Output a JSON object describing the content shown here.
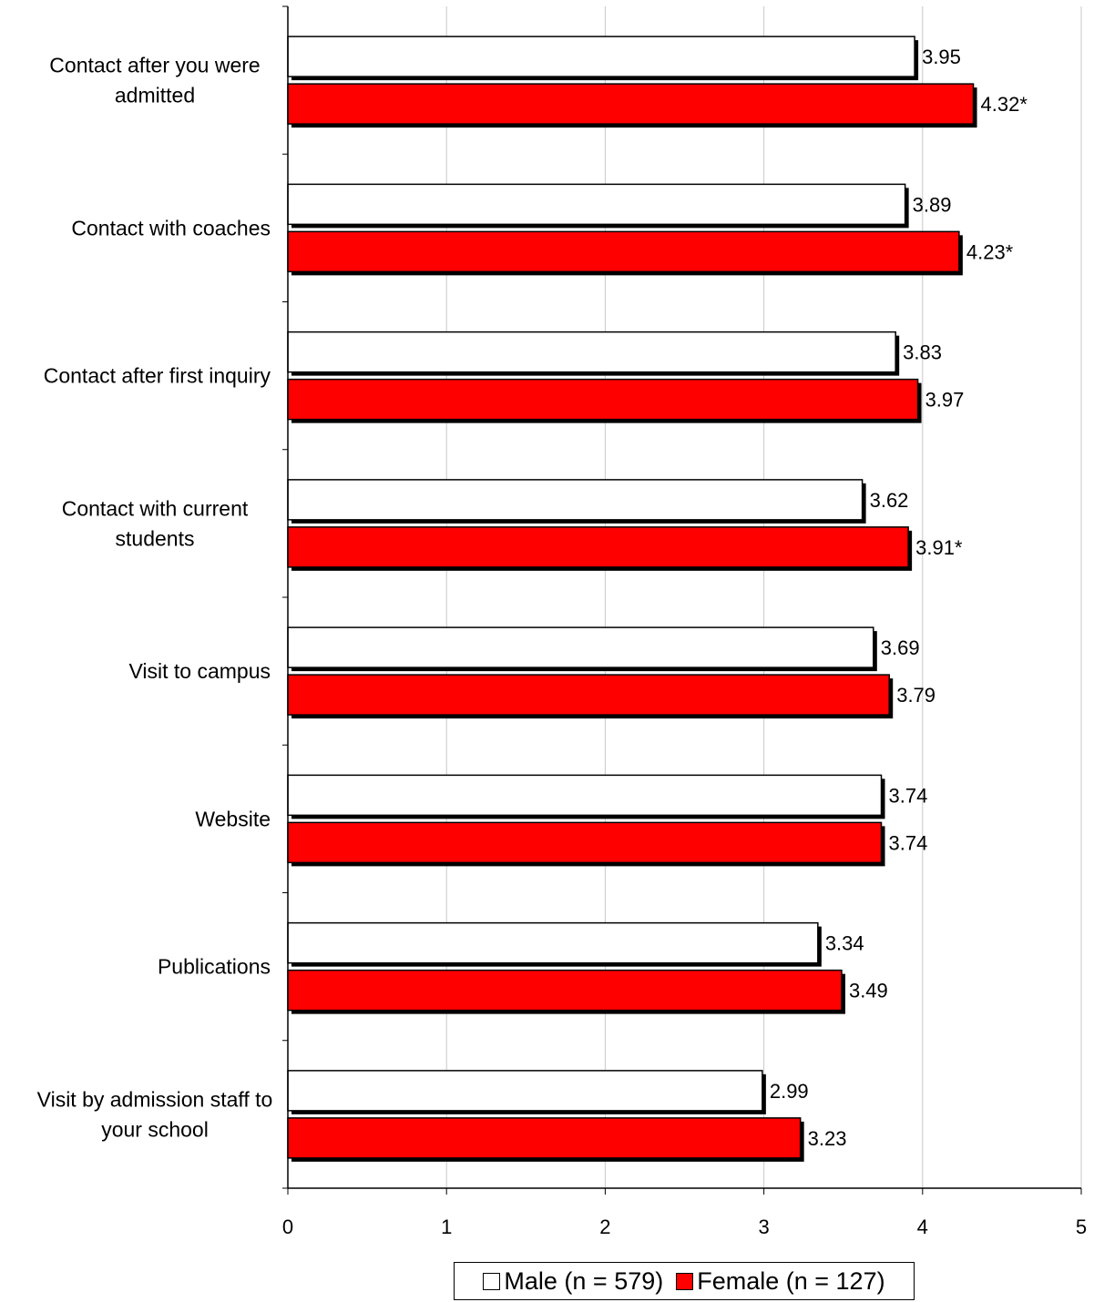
{
  "chart_data": {
    "type": "bar",
    "orientation": "horizontal",
    "title": "",
    "xlabel": "",
    "ylabel": "",
    "xlim": [
      0,
      5
    ],
    "x_ticks": [
      "0",
      "1",
      "2",
      "3",
      "4",
      "5"
    ],
    "grid": "vertical gridlines",
    "legend_position": "bottom-center",
    "categories": [
      "Contact after you were admitted",
      "Contact with coaches",
      "Contact after first inquiry",
      "Contact with current students",
      "Visit to campus",
      "Website",
      "Publications",
      "Visit by admission staff to your school"
    ],
    "category_label_lines": [
      [
        "Contact after you were",
        "admitted"
      ],
      [
        "Contact with coaches"
      ],
      [
        "Contact after first inquiry"
      ],
      [
        "Contact with current",
        "students"
      ],
      [
        "Visit to campus"
      ],
      [
        "Website"
      ],
      [
        "Publications"
      ],
      [
        "Visit by admission staff to",
        "your school"
      ]
    ],
    "series": [
      {
        "name": "Male (n = 579)",
        "color": "#ffffff",
        "values": [
          3.95,
          3.89,
          3.83,
          3.62,
          3.69,
          3.74,
          3.34,
          2.99
        ],
        "labels": [
          "3.95",
          "3.89",
          "3.83",
          "3.62",
          "3.69",
          "3.74",
          "3.34",
          "2.99"
        ]
      },
      {
        "name": "Female (n = 127)",
        "color": "#ff0000",
        "values": [
          4.32,
          4.23,
          3.97,
          3.91,
          3.79,
          3.74,
          3.49,
          3.23
        ],
        "labels": [
          "4.32*",
          "4.23*",
          "3.97",
          "3.91*",
          "3.79",
          "3.74",
          "3.49",
          "3.23"
        ]
      }
    ]
  }
}
